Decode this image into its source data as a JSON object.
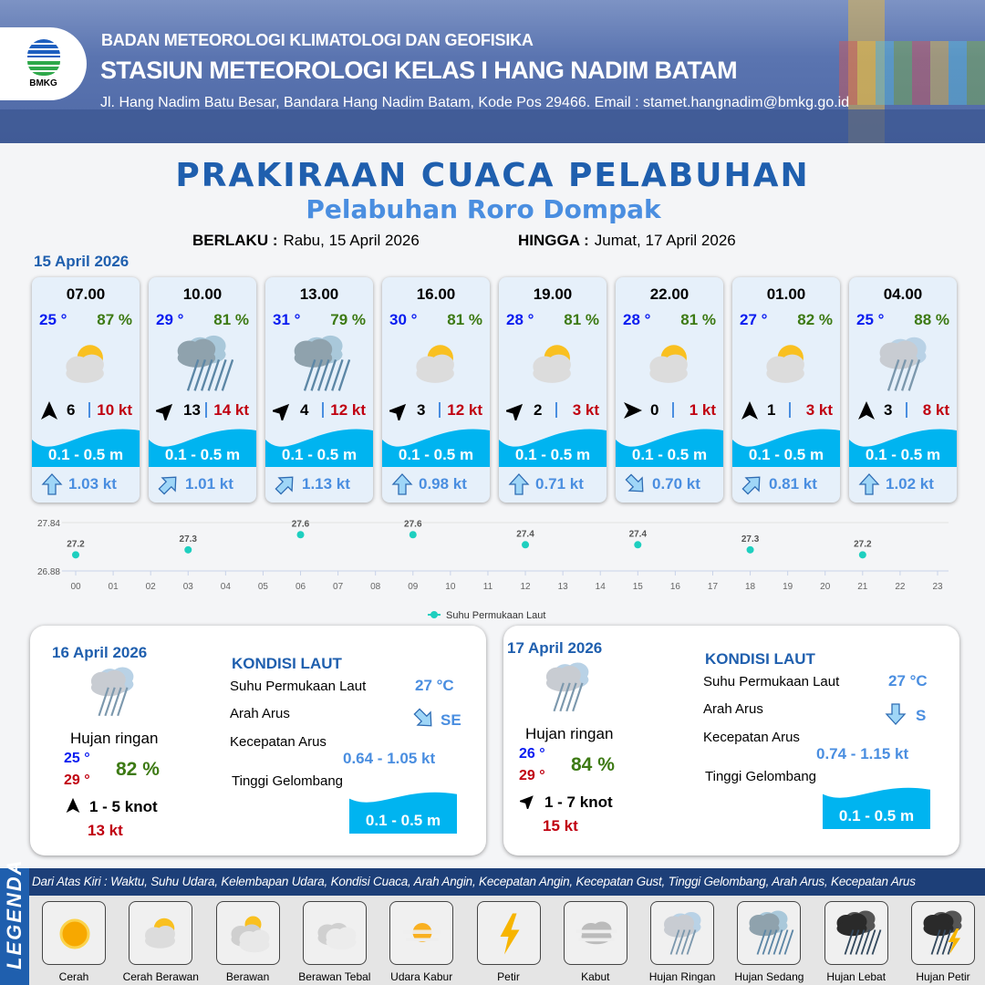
{
  "header": {
    "agency": "BADAN METEOROLOGI KLIMATOLOGI DAN GEOFISIKA",
    "station": "STASIUN METEOROLOGI KELAS I HANG NADIM BATAM",
    "address": "Jl. Hang Nadim Batu Besar, Bandara Hang Nadim Batam, Kode Pos 29466. Email : stamet.hangnadim@bmkg.go.id",
    "logo_text": "BMKG"
  },
  "title": "PRAKIRAAN CUACA PELABUHAN",
  "subtitle": "Pelabuhan Roro Dompak",
  "validity": {
    "from_label": "BERLAKU :",
    "from": "Rabu, 15 April 2026",
    "to_label": "HINGGA :",
    "to": "Jumat, 17 April 2026"
  },
  "day1": {
    "date": "15 April 2026",
    "cards": [
      {
        "time": "07.00",
        "temp": "25 °",
        "hum": "87 %",
        "icon": "cerah-berawan",
        "wind_dir": "N",
        "wind": "6",
        "gust": "10 kt",
        "wave": "0.1 - 0.5 m",
        "cur_dir": "N",
        "cur": "1.03 kt"
      },
      {
        "time": "10.00",
        "temp": "29 °",
        "hum": "81 %",
        "icon": "hujan-sedang",
        "wind_dir": "NE",
        "wind": "13",
        "gust": "14 kt",
        "wave": "0.1 - 0.5 m",
        "cur_dir": "NE",
        "cur": "1.01 kt"
      },
      {
        "time": "13.00",
        "temp": "31 °",
        "hum": "79 %",
        "icon": "hujan-sedang",
        "wind_dir": "NE",
        "wind": "4",
        "gust": "12 kt",
        "wave": "0.1 - 0.5 m",
        "cur_dir": "NE",
        "cur": "1.13 kt"
      },
      {
        "time": "16.00",
        "temp": "30 °",
        "hum": "81 %",
        "icon": "cerah-berawan",
        "wind_dir": "NE",
        "wind": "3",
        "gust": "12 kt",
        "wave": "0.1 - 0.5 m",
        "cur_dir": "N",
        "cur": "0.98 kt"
      },
      {
        "time": "19.00",
        "temp": "28 °",
        "hum": "81 %",
        "icon": "cerah-berawan",
        "wind_dir": "NE",
        "wind": "2",
        "gust": "3 kt",
        "wave": "0.1 - 0.5 m",
        "cur_dir": "N",
        "cur": "0.71 kt"
      },
      {
        "time": "22.00",
        "temp": "28 °",
        "hum": "81 %",
        "icon": "cerah-berawan",
        "wind_dir": "E",
        "wind": "0",
        "gust": "1 kt",
        "wave": "0.1 - 0.5 m",
        "cur_dir": "SE",
        "cur": "0.70 kt"
      },
      {
        "time": "01.00",
        "temp": "27 °",
        "hum": "82 %",
        "icon": "cerah-berawan",
        "wind_dir": "N",
        "wind": "1",
        "gust": "3 kt",
        "wave": "0.1 - 0.5 m",
        "cur_dir": "NE",
        "cur": "0.81 kt"
      },
      {
        "time": "04.00",
        "temp": "25 °",
        "hum": "88 %",
        "icon": "hujan-ringan",
        "wind_dir": "N",
        "wind": "3",
        "gust": "8 kt",
        "wave": "0.1 - 0.5 m",
        "cur_dir": "N",
        "cur": "1.02 kt"
      }
    ]
  },
  "chart_data": {
    "type": "scatter",
    "x_ticks": [
      "00",
      "01",
      "02",
      "03",
      "04",
      "05",
      "06",
      "07",
      "08",
      "09",
      "10",
      "11",
      "12",
      "13",
      "14",
      "15",
      "16",
      "17",
      "18",
      "19",
      "20",
      "21",
      "22",
      "23"
    ],
    "x": [
      "00",
      "03",
      "06",
      "09",
      "12",
      "15",
      "18",
      "21"
    ],
    "series": [
      {
        "name": "Suhu Permukaan Laut",
        "values": [
          27.2,
          27.3,
          27.6,
          27.6,
          27.4,
          27.4,
          27.3,
          27.2
        ],
        "color": "#1ecfbf"
      }
    ],
    "y_ticks": [
      "27.84",
      "26.88"
    ],
    "ylim": [
      26.88,
      27.84
    ],
    "legend": "bottom-center",
    "grid": true
  },
  "days": [
    {
      "date": "16 April 2026",
      "icon": "hujan-ringan",
      "cond": "Hujan ringan",
      "tmin": "25 °",
      "tmax": "29 °",
      "hum": "82 %",
      "wind_dir": "N",
      "wind": "1 - 5 knot",
      "gust": "13 kt",
      "sea": {
        "title": "KONDISI LAUT",
        "sst_label": "Suhu Permukaan Laut",
        "sst": "27 °C",
        "dir_label": "Arah Arus",
        "dir": "SE",
        "speed_label": "Kecepatan Arus",
        "speed": "0.64  - 1.05 kt",
        "wave_label": "Tinggi Gelombang",
        "wave": "0.1 - 0.5 m"
      }
    },
    {
      "date": "17 April 2026",
      "icon": "hujan-ringan",
      "cond": "Hujan ringan",
      "tmin": "26 °",
      "tmax": "29 °",
      "hum": "84 %",
      "wind_dir": "NE",
      "wind": "1 - 7 knot",
      "gust": "15 kt",
      "sea": {
        "title": "KONDISI LAUT",
        "sst_label": "Suhu Permukaan Laut",
        "sst": "27 °C",
        "dir_label": "Arah Arus",
        "dir": "S",
        "speed_label": "Kecepatan Arus",
        "speed": "0.74  - 1.15 kt",
        "wave_label": "Tinggi Gelombang",
        "wave": "0.1 - 0.5 m"
      }
    }
  ],
  "legend": {
    "title": "LEGENDA",
    "description": "Dari Atas Kiri : Waktu, Suhu Udara, Kelembapan Udara, Kondisi Cuaca, Arah Angin, Kecepatan Angin, Kecepatan Gust, Tinggi Gelombang, Arah Arus, Kecepatan Arus",
    "items": [
      {
        "label": "Cerah",
        "icon": "cerah"
      },
      {
        "label": "Cerah Berawan",
        "icon": "cerah-berawan"
      },
      {
        "label": "Berawan",
        "icon": "berawan"
      },
      {
        "label": "Berawan Tebal",
        "icon": "berawan-tebal"
      },
      {
        "label": "Udara Kabur",
        "icon": "udara-kabur"
      },
      {
        "label": "Petir",
        "icon": "petir"
      },
      {
        "label": "Kabut",
        "icon": "kabut"
      },
      {
        "label": "Hujan Ringan",
        "icon": "hujan-ringan"
      },
      {
        "label": "Hujan Sedang",
        "icon": "hujan-sedang"
      },
      {
        "label": "Hujan Lebat",
        "icon": "hujan-lebat"
      },
      {
        "label": "Hujan Petir",
        "icon": "hujan-petir"
      }
    ]
  },
  "colors": {
    "wave": "#00b4f0",
    "title": "#1f5fae",
    "temp": "#0a1cf0",
    "humidity": "#3d7a14",
    "gust": "#c00010",
    "current": "#4a8ee0"
  }
}
